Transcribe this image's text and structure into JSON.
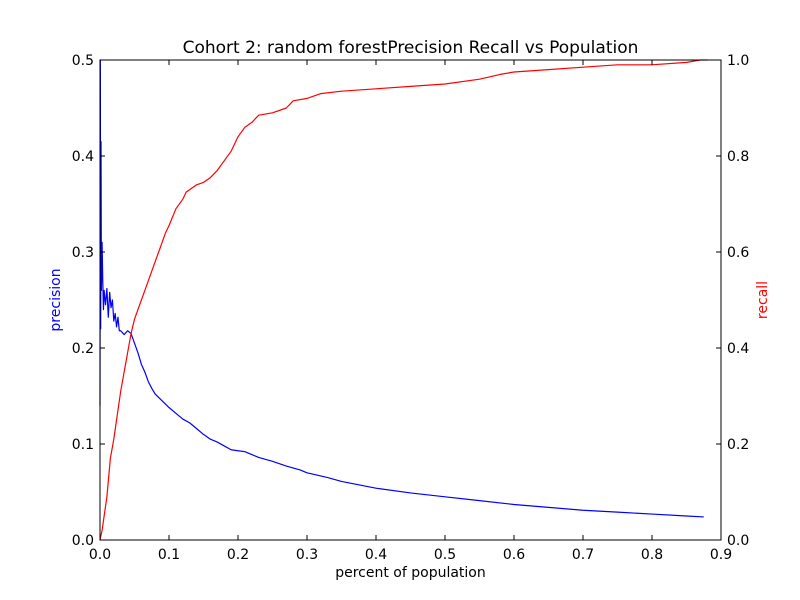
{
  "chart_data": {
    "type": "line",
    "title": "Cohort 2: random forestPrecision Recall vs Population",
    "xlabel": "percent of population",
    "ylabel_left": "precision",
    "ylabel_right": "recall",
    "xlim": [
      0.0,
      0.9
    ],
    "ylim_left": [
      0.0,
      0.5
    ],
    "ylim_right": [
      0.0,
      1.0
    ],
    "x_ticks": [
      "0.0",
      "0.1",
      "0.2",
      "0.3",
      "0.4",
      "0.5",
      "0.6",
      "0.7",
      "0.8",
      "0.9"
    ],
    "y_left_ticks": [
      "0.0",
      "0.1",
      "0.2",
      "0.3",
      "0.4",
      "0.5"
    ],
    "y_right_ticks": [
      "0.0",
      "0.2",
      "0.4",
      "0.6",
      "0.8",
      "1.0"
    ],
    "grid": false,
    "colors": {
      "precision": "#0000ff",
      "recall": "#ff0000",
      "axes": "#000000"
    },
    "series": [
      {
        "name": "precision",
        "axis": "left",
        "color": "#0000ff",
        "points": [
          [
            0.0,
            0.14
          ],
          [
            0.0005,
            0.5
          ],
          [
            0.001,
            0.22
          ],
          [
            0.0015,
            0.415
          ],
          [
            0.002,
            0.26
          ],
          [
            0.003,
            0.31
          ],
          [
            0.004,
            0.27
          ],
          [
            0.005,
            0.24
          ],
          [
            0.006,
            0.26
          ],
          [
            0.008,
            0.245
          ],
          [
            0.01,
            0.262
          ],
          [
            0.012,
            0.232
          ],
          [
            0.014,
            0.258
          ],
          [
            0.016,
            0.242
          ],
          [
            0.018,
            0.25
          ],
          [
            0.02,
            0.228
          ],
          [
            0.022,
            0.236
          ],
          [
            0.024,
            0.222
          ],
          [
            0.026,
            0.232
          ],
          [
            0.028,
            0.218
          ],
          [
            0.03,
            0.218
          ],
          [
            0.035,
            0.214
          ],
          [
            0.04,
            0.218
          ],
          [
            0.045,
            0.215
          ],
          [
            0.05,
            0.205
          ],
          [
            0.055,
            0.195
          ],
          [
            0.06,
            0.183
          ],
          [
            0.065,
            0.175
          ],
          [
            0.07,
            0.165
          ],
          [
            0.075,
            0.158
          ],
          [
            0.08,
            0.152
          ],
          [
            0.09,
            0.145
          ],
          [
            0.1,
            0.138
          ],
          [
            0.11,
            0.132
          ],
          [
            0.12,
            0.126
          ],
          [
            0.13,
            0.122
          ],
          [
            0.14,
            0.116
          ],
          [
            0.15,
            0.11
          ],
          [
            0.16,
            0.105
          ],
          [
            0.17,
            0.102
          ],
          [
            0.18,
            0.098
          ],
          [
            0.19,
            0.094
          ],
          [
            0.2,
            0.093
          ],
          [
            0.21,
            0.092
          ],
          [
            0.22,
            0.089
          ],
          [
            0.23,
            0.086
          ],
          [
            0.25,
            0.082
          ],
          [
            0.27,
            0.077
          ],
          [
            0.29,
            0.073
          ],
          [
            0.3,
            0.07
          ],
          [
            0.33,
            0.065
          ],
          [
            0.35,
            0.061
          ],
          [
            0.4,
            0.054
          ],
          [
            0.45,
            0.049
          ],
          [
            0.5,
            0.045
          ],
          [
            0.55,
            0.041
          ],
          [
            0.6,
            0.037
          ],
          [
            0.65,
            0.034
          ],
          [
            0.7,
            0.031
          ],
          [
            0.75,
            0.029
          ],
          [
            0.8,
            0.027
          ],
          [
            0.85,
            0.025
          ],
          [
            0.875,
            0.024
          ]
        ]
      },
      {
        "name": "recall",
        "axis": "right",
        "color": "#ff0000",
        "points": [
          [
            0.0,
            0.0
          ],
          [
            0.003,
            0.02
          ],
          [
            0.006,
            0.05
          ],
          [
            0.01,
            0.09
          ],
          [
            0.015,
            0.17
          ],
          [
            0.02,
            0.21
          ],
          [
            0.025,
            0.26
          ],
          [
            0.03,
            0.31
          ],
          [
            0.035,
            0.35
          ],
          [
            0.04,
            0.39
          ],
          [
            0.045,
            0.43
          ],
          [
            0.05,
            0.46
          ],
          [
            0.055,
            0.48
          ],
          [
            0.06,
            0.5
          ],
          [
            0.065,
            0.52
          ],
          [
            0.07,
            0.54
          ],
          [
            0.075,
            0.56
          ],
          [
            0.08,
            0.58
          ],
          [
            0.085,
            0.6
          ],
          [
            0.09,
            0.62
          ],
          [
            0.095,
            0.64
          ],
          [
            0.1,
            0.655
          ],
          [
            0.11,
            0.69
          ],
          [
            0.12,
            0.71
          ],
          [
            0.125,
            0.725
          ],
          [
            0.13,
            0.73
          ],
          [
            0.14,
            0.74
          ],
          [
            0.15,
            0.745
          ],
          [
            0.16,
            0.755
          ],
          [
            0.17,
            0.77
          ],
          [
            0.18,
            0.79
          ],
          [
            0.19,
            0.81
          ],
          [
            0.2,
            0.84
          ],
          [
            0.21,
            0.86
          ],
          [
            0.22,
            0.87
          ],
          [
            0.23,
            0.885
          ],
          [
            0.25,
            0.89
          ],
          [
            0.27,
            0.9
          ],
          [
            0.28,
            0.915
          ],
          [
            0.3,
            0.92
          ],
          [
            0.32,
            0.93
          ],
          [
            0.35,
            0.935
          ],
          [
            0.4,
            0.94
          ],
          [
            0.45,
            0.945
          ],
          [
            0.5,
            0.95
          ],
          [
            0.55,
            0.96
          ],
          [
            0.58,
            0.97
          ],
          [
            0.6,
            0.975
          ],
          [
            0.65,
            0.98
          ],
          [
            0.7,
            0.985
          ],
          [
            0.75,
            0.99
          ],
          [
            0.8,
            0.99
          ],
          [
            0.85,
            0.995
          ],
          [
            0.87,
            1.0
          ],
          [
            0.88,
            1.0
          ]
        ]
      }
    ]
  }
}
